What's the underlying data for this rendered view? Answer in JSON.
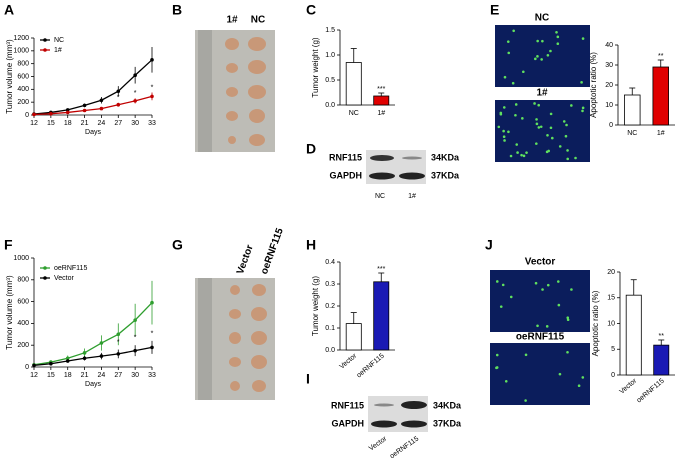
{
  "panel_letters": [
    "A",
    "B",
    "C",
    "D",
    "E",
    "F",
    "G",
    "H",
    "I",
    "J"
  ],
  "photos": [
    {
      "labels": [
        "1#",
        "NC"
      ]
    },
    {
      "labels": [
        "Vector",
        "oeRNF115"
      ]
    }
  ],
  "blots": [
    {
      "rows": [
        "RNF115",
        "GAPDH"
      ],
      "sizes": [
        "34KDa",
        "37KDa"
      ],
      "lanes": [
        "NC",
        "1#"
      ]
    },
    {
      "rows": [
        "RNF115",
        "GAPDH"
      ],
      "sizes": [
        "34KDa",
        "37KDa"
      ],
      "lanes": [
        "Vector",
        "oeRNF115"
      ]
    }
  ],
  "fluorescence": [
    {
      "labels": [
        "NC",
        "1#"
      ]
    },
    {
      "labels": [
        "Vector",
        "oeRNF115"
      ]
    }
  ],
  "chart_data": [
    {
      "type": "line",
      "x_label": "Days",
      "y_label": "Tumor volume (mm³)",
      "x": [
        12,
        15,
        18,
        21,
        24,
        27,
        30,
        33
      ],
      "xlim": [
        12,
        33
      ],
      "xticks": [
        12,
        15,
        18,
        21,
        24,
        27,
        30,
        33
      ],
      "ylim": [
        0,
        1200
      ],
      "yticks": [
        0,
        200,
        400,
        600,
        800,
        1000,
        1200
      ],
      "legend": "upper left",
      "series": [
        {
          "name": "NC",
          "color": "#000000",
          "values": [
            15,
            40,
            80,
            150,
            230,
            370,
            620,
            860
          ],
          "errors": [
            5,
            10,
            20,
            30,
            50,
            80,
            130,
            200
          ]
        },
        {
          "name": "1#",
          "color": "#c00000",
          "values": [
            8,
            20,
            40,
            70,
            100,
            160,
            220,
            290
          ],
          "errors": [
            3,
            6,
            10,
            15,
            20,
            30,
            40,
            60
          ]
        }
      ],
      "annotations": [
        {
          "x": 24,
          "y": 150,
          "text": "*"
        },
        {
          "x": 27,
          "y": 220,
          "text": "*"
        },
        {
          "x": 30,
          "y": 290,
          "text": "*"
        },
        {
          "x": 33,
          "y": 380,
          "text": "*"
        }
      ]
    },
    {
      "type": "bar",
      "y_label": "Tumor weight (g)",
      "categories": [
        "NC",
        "1#"
      ],
      "values": [
        0.85,
        0.18
      ],
      "errors": [
        0.28,
        0.06
      ],
      "colors": [
        "#ffffff",
        "#e00000"
      ],
      "ylim": [
        0,
        1.5
      ],
      "yticks": [
        {
          "value": 0,
          "label": "0.0"
        },
        0.5,
        {
          "value": 1,
          "label": "1.0"
        },
        1.5
      ],
      "annotations": [
        {
          "index": 1,
          "text": "***"
        }
      ]
    },
    {
      "type": "bar",
      "y_label": "Apoptotic ratio (%)",
      "categories": [
        "NC",
        "1#"
      ],
      "values": [
        15,
        29
      ],
      "errors": [
        3.5,
        3.5
      ],
      "colors": [
        "#ffffff",
        "#e00000"
      ],
      "ylim": [
        0,
        40
      ],
      "yticks": [
        0,
        10,
        20,
        30,
        40
      ],
      "annotations": [
        {
          "index": 1,
          "text": "**"
        }
      ]
    },
    {
      "type": "line",
      "x_label": "Days",
      "y_label": "Tumor volume (mm³)",
      "x": [
        12,
        15,
        18,
        21,
        24,
        27,
        30,
        33
      ],
      "xlim": [
        12,
        33
      ],
      "xticks": [
        12,
        15,
        18,
        21,
        24,
        27,
        30,
        33
      ],
      "ylim": [
        0,
        1000
      ],
      "yticks": [
        0,
        200,
        400,
        600,
        800,
        1000
      ],
      "legend": "upper left",
      "series": [
        {
          "name": "oeRNF115",
          "color": "#2e9e2e",
          "values": [
            20,
            45,
            80,
            130,
            220,
            300,
            430,
            590
          ],
          "errors": [
            8,
            15,
            25,
            40,
            70,
            100,
            150,
            200
          ]
        },
        {
          "name": "Vector",
          "color": "#000000",
          "values": [
            15,
            30,
            55,
            80,
            100,
            120,
            150,
            180
          ],
          "errors": [
            5,
            10,
            15,
            20,
            30,
            40,
            50,
            60
          ]
        }
      ],
      "annotations": [
        {
          "x": 27,
          "y": 200,
          "text": "*"
        },
        {
          "x": 30,
          "y": 240,
          "text": "*"
        },
        {
          "x": 33,
          "y": 280,
          "text": "*"
        }
      ]
    },
    {
      "type": "bar",
      "y_label": "Tumor weight (g)",
      "categories": [
        "Vector",
        "oeRNF115"
      ],
      "values": [
        0.12,
        0.31
      ],
      "errors": [
        0.05,
        0.04
      ],
      "colors": [
        "#ffffff",
        "#1a1ab4"
      ],
      "ylim": [
        0,
        0.4
      ],
      "yticks": [
        {
          "value": 0,
          "label": "0.0"
        },
        0.1,
        0.2,
        0.3,
        0.4
      ],
      "annotations": [
        {
          "index": 1,
          "text": "***"
        }
      ]
    },
    {
      "type": "bar",
      "y_label": "Apoptotic ratio (%)",
      "categories": [
        "Vector",
        "oeRNF115"
      ],
      "values": [
        15.5,
        5.8
      ],
      "errors": [
        3,
        1
      ],
      "colors": [
        "#ffffff",
        "#1a1ab4"
      ],
      "ylim": [
        0,
        20
      ],
      "yticks": [
        0,
        5,
        10,
        15,
        20
      ],
      "annotations": [
        {
          "index": 1,
          "text": "**"
        }
      ]
    }
  ]
}
